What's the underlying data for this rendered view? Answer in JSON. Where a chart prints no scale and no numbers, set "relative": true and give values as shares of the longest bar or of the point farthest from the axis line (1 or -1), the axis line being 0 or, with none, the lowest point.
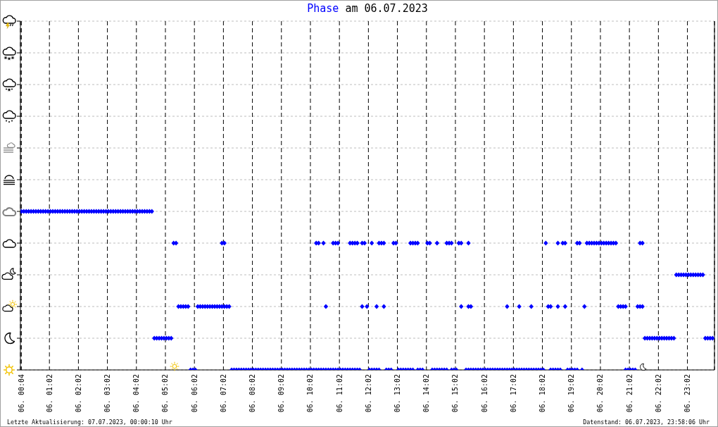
{
  "chart_data": {
    "type": "scatter",
    "title": "am 06.07.2023",
    "legend": "top",
    "marker": "diamond",
    "grid": true,
    "relative": true,
    "annotations": [
      "Letzte Aktualisierung: 07.07.2023, 00:00:10 Uhr",
      "Datenstand: 06.07.2023, 23:58:06 Uhr"
    ],
    "xlim": [
      "2023-07-06T00:02",
      "2023-07-06T23:58"
    ],
    "xticks": [
      {
        "value": "2023-07-06T00:04",
        "label": "06. 00:04"
      },
      {
        "value": "2023-07-06T01:02",
        "label": "06. 01:02"
      },
      {
        "value": "2023-07-06T02:02",
        "label": "06. 02:02"
      },
      {
        "value": "2023-07-06T03:02",
        "label": "06. 03:02"
      },
      {
        "value": "2023-07-06T04:02",
        "label": "06. 04:02"
      },
      {
        "value": "2023-07-06T05:02",
        "label": "06. 05:02"
      },
      {
        "value": "2023-07-06T06:02",
        "label": "06. 06:02"
      },
      {
        "value": "2023-07-06T07:02",
        "label": "06. 07:02"
      },
      {
        "value": "2023-07-06T08:02",
        "label": "06. 08:02"
      },
      {
        "value": "2023-07-06T09:02",
        "label": "06. 09:02"
      },
      {
        "value": "2023-07-06T10:02",
        "label": "06. 10:02"
      },
      {
        "value": "2023-07-06T11:02",
        "label": "06. 11:02"
      },
      {
        "value": "2023-07-06T12:02",
        "label": "06. 12:02"
      },
      {
        "value": "2023-07-06T13:02",
        "label": "06. 13:02"
      },
      {
        "value": "2023-07-06T14:02",
        "label": "06. 14:02"
      },
      {
        "value": "2023-07-06T15:02",
        "label": "06. 15:02"
      },
      {
        "value": "2023-07-06T16:02",
        "label": "06. 16:02"
      },
      {
        "value": "2023-07-06T17:02",
        "label": "06. 17:02"
      },
      {
        "value": "2023-07-06T18:02",
        "label": "06. 18:02"
      },
      {
        "value": "2023-07-06T19:02",
        "label": "06. 19:02"
      },
      {
        "value": "2023-07-06T20:02",
        "label": "06. 20:02"
      },
      {
        "value": "2023-07-06T21:02",
        "label": "06. 21:02"
      },
      {
        "value": "2023-07-06T22:02",
        "label": "06. 22:02"
      },
      {
        "value": "2023-07-06T23:02",
        "label": "06. 23:02"
      }
    ],
    "x": [
      "2023-07-06T00:04",
      "2023-07-06T00:09",
      "2023-07-06T00:14",
      "2023-07-06T00:19",
      "2023-07-06T00:24",
      "2023-07-06T00:29",
      "2023-07-06T00:34",
      "2023-07-06T00:39",
      "2023-07-06T00:44",
      "2023-07-06T00:49",
      "2023-07-06T00:54",
      "2023-07-06T00:59",
      "2023-07-06T01:04",
      "2023-07-06T01:09",
      "2023-07-06T01:14",
      "2023-07-06T01:19",
      "2023-07-06T01:24",
      "2023-07-06T01:29",
      "2023-07-06T01:34",
      "2023-07-06T01:39",
      "2023-07-06T01:44",
      "2023-07-06T01:49",
      "2023-07-06T01:54",
      "2023-07-06T01:59",
      "2023-07-06T02:04",
      "2023-07-06T02:09",
      "2023-07-06T02:14",
      "2023-07-06T02:19",
      "2023-07-06T02:24",
      "2023-07-06T02:29",
      "2023-07-06T02:34",
      "2023-07-06T02:39",
      "2023-07-06T02:44",
      "2023-07-06T02:49",
      "2023-07-06T02:54",
      "2023-07-06T02:59",
      "2023-07-06T03:04",
      "2023-07-06T03:09",
      "2023-07-06T03:14",
      "2023-07-06T03:19",
      "2023-07-06T03:24",
      "2023-07-06T03:29",
      "2023-07-06T03:34",
      "2023-07-06T03:39",
      "2023-07-06T03:44",
      "2023-07-06T03:49",
      "2023-07-06T03:54",
      "2023-07-06T03:59",
      "2023-07-06T04:04",
      "2023-07-06T04:09",
      "2023-07-06T04:14",
      "2023-07-06T04:19",
      "2023-07-06T04:24",
      "2023-07-06T04:29",
      "2023-07-06T04:34",
      "2023-07-06T04:39",
      "2023-07-06T04:44",
      "2023-07-06T04:49",
      "2023-07-06T04:54",
      "2023-07-06T04:59",
      "2023-07-06T05:04",
      "2023-07-06T05:09",
      "2023-07-06T05:14",
      "2023-07-06T05:19",
      "2023-07-06T05:24",
      "2023-07-06T05:29",
      "2023-07-06T05:34",
      "2023-07-06T05:39",
      "2023-07-06T05:44",
      "2023-07-06T05:49",
      "2023-07-06T05:54",
      "2023-07-06T05:59",
      "2023-07-06T06:04",
      "2023-07-06T06:09",
      "2023-07-06T06:14",
      "2023-07-06T06:19",
      "2023-07-06T06:24",
      "2023-07-06T06:29",
      "2023-07-06T06:34",
      "2023-07-06T06:39",
      "2023-07-06T06:44",
      "2023-07-06T06:49",
      "2023-07-06T06:54",
      "2023-07-06T06:59",
      "2023-07-06T06:59",
      "2023-07-06T07:04",
      "2023-07-06T07:04",
      "2023-07-06T07:09",
      "2023-07-06T07:14",
      "2023-07-06T07:19",
      "2023-07-06T07:24",
      "2023-07-06T07:29",
      "2023-07-06T07:34",
      "2023-07-06T07:39",
      "2023-07-06T07:44",
      "2023-07-06T07:49",
      "2023-07-06T07:54",
      "2023-07-06T07:59",
      "2023-07-06T08:04",
      "2023-07-06T08:09",
      "2023-07-06T08:14",
      "2023-07-06T08:19",
      "2023-07-06T08:24",
      "2023-07-06T08:29",
      "2023-07-06T08:34",
      "2023-07-06T08:39",
      "2023-07-06T08:44",
      "2023-07-06T08:49",
      "2023-07-06T08:54",
      "2023-07-06T08:59",
      "2023-07-06T09:04",
      "2023-07-06T09:09",
      "2023-07-06T09:14",
      "2023-07-06T09:19",
      "2023-07-06T09:24",
      "2023-07-06T09:29",
      "2023-07-06T09:34",
      "2023-07-06T09:39",
      "2023-07-06T09:44",
      "2023-07-06T09:49",
      "2023-07-06T09:54",
      "2023-07-06T09:59",
      "2023-07-06T10:04",
      "2023-07-06T10:09",
      "2023-07-06T10:14",
      "2023-07-06T10:14",
      "2023-07-06T10:19",
      "2023-07-06T10:19",
      "2023-07-06T10:24",
      "2023-07-06T10:29",
      "2023-07-06T10:29",
      "2023-07-06T10:34",
      "2023-07-06T10:34",
      "2023-07-06T10:39",
      "2023-07-06T10:44",
      "2023-07-06T10:49",
      "2023-07-06T10:49",
      "2023-07-06T10:54",
      "2023-07-06T10:54",
      "2023-07-06T10:59",
      "2023-07-06T10:59",
      "2023-07-06T11:04",
      "2023-07-06T11:09",
      "2023-07-06T11:14",
      "2023-07-06T11:19",
      "2023-07-06T11:24",
      "2023-07-06T11:24",
      "2023-07-06T11:29",
      "2023-07-06T11:29",
      "2023-07-06T11:34",
      "2023-07-06T11:34",
      "2023-07-06T11:39",
      "2023-07-06T11:39",
      "2023-07-06T11:44",
      "2023-07-06T11:49",
      "2023-07-06T11:49",
      "2023-07-06T11:54",
      "2023-07-06T11:59",
      "2023-07-06T12:04",
      "2023-07-06T12:09",
      "2023-07-06T12:09",
      "2023-07-06T12:14",
      "2023-07-06T12:19",
      "2023-07-06T12:19",
      "2023-07-06T12:24",
      "2023-07-06T12:24",
      "2023-07-06T12:29",
      "2023-07-06T12:34",
      "2023-07-06T12:34",
      "2023-07-06T12:39",
      "2023-07-06T12:44",
      "2023-07-06T12:49",
      "2023-07-06T12:54",
      "2023-07-06T12:59",
      "2023-07-06T13:04",
      "2023-07-06T13:09",
      "2023-07-06T13:14",
      "2023-07-06T13:19",
      "2023-07-06T13:24",
      "2023-07-06T13:29",
      "2023-07-06T13:29",
      "2023-07-06T13:34",
      "2023-07-06T13:34",
      "2023-07-06T13:39",
      "2023-07-06T13:44",
      "2023-07-06T13:44",
      "2023-07-06T13:49",
      "2023-07-06T13:54",
      "2023-07-06T14:04",
      "2023-07-06T14:09",
      "2023-07-06T14:14",
      "2023-07-06T14:19",
      "2023-07-06T14:24",
      "2023-07-06T14:24",
      "2023-07-06T14:29",
      "2023-07-06T14:34",
      "2023-07-06T14:39",
      "2023-07-06T14:44",
      "2023-07-06T14:44",
      "2023-07-06T14:49",
      "2023-07-06T14:54",
      "2023-07-06T14:54",
      "2023-07-06T14:59",
      "2023-07-06T15:04",
      "2023-07-06T15:09",
      "2023-07-06T15:14",
      "2023-07-06T15:14",
      "2023-07-06T15:24",
      "2023-07-06T15:29",
      "2023-07-06T15:29",
      "2023-07-06T15:29",
      "2023-07-06T15:34",
      "2023-07-06T15:34",
      "2023-07-06T15:39",
      "2023-07-06T15:44",
      "2023-07-06T15:49",
      "2023-07-06T15:54",
      "2023-07-06T15:59",
      "2023-07-06T16:04",
      "2023-07-06T16:09",
      "2023-07-06T16:14",
      "2023-07-06T16:19",
      "2023-07-06T16:24",
      "2023-07-06T16:29",
      "2023-07-06T16:34",
      "2023-07-06T16:39",
      "2023-07-06T16:44",
      "2023-07-06T16:49",
      "2023-07-06T16:49",
      "2023-07-06T16:54",
      "2023-07-06T16:59",
      "2023-07-06T17:04",
      "2023-07-06T17:09",
      "2023-07-06T17:14",
      "2023-07-06T17:14",
      "2023-07-06T17:19",
      "2023-07-06T17:24",
      "2023-07-06T17:29",
      "2023-07-06T17:34",
      "2023-07-06T17:39",
      "2023-07-06T17:39",
      "2023-07-06T17:44",
      "2023-07-06T17:49",
      "2023-07-06T17:54",
      "2023-07-06T17:59",
      "2023-07-06T18:04",
      "2023-07-06T18:09",
      "2023-07-06T18:14",
      "2023-07-06T18:19",
      "2023-07-06T18:19",
      "2023-07-06T18:24",
      "2023-07-06T18:29",
      "2023-07-06T18:34",
      "2023-07-06T18:34",
      "2023-07-06T18:34",
      "2023-07-06T18:39",
      "2023-07-06T18:44",
      "2023-07-06T18:49",
      "2023-07-06T18:49",
      "2023-07-06T18:54",
      "2023-07-06T18:59",
      "2023-07-06T19:04",
      "2023-07-06T19:09",
      "2023-07-06T19:14",
      "2023-07-06T19:14",
      "2023-07-06T19:19",
      "2023-07-06T19:24",
      "2023-07-06T19:29",
      "2023-07-06T19:34",
      "2023-07-06T19:39",
      "2023-07-06T19:44",
      "2023-07-06T19:49",
      "2023-07-06T19:54",
      "2023-07-06T19:59",
      "2023-07-06T20:04",
      "2023-07-06T20:09",
      "2023-07-06T20:14",
      "2023-07-06T20:19",
      "2023-07-06T20:24",
      "2023-07-06T20:29",
      "2023-07-06T20:34",
      "2023-07-06T20:39",
      "2023-07-06T20:44",
      "2023-07-06T20:49",
      "2023-07-06T20:54",
      "2023-07-06T20:54",
      "2023-07-06T20:59",
      "2023-07-06T21:04",
      "2023-07-06T21:09",
      "2023-07-06T21:14",
      "2023-07-06T21:19",
      "2023-07-06T21:24",
      "2023-07-06T21:24",
      "2023-07-06T21:29",
      "2023-07-06T21:29",
      "2023-07-06T21:34",
      "2023-07-06T21:39",
      "2023-07-06T21:44",
      "2023-07-06T21:49",
      "2023-07-06T21:54",
      "2023-07-06T21:59",
      "2023-07-06T22:04",
      "2023-07-06T22:09",
      "2023-07-06T22:14",
      "2023-07-06T22:19",
      "2023-07-06T22:24",
      "2023-07-06T22:29",
      "2023-07-06T22:34",
      "2023-07-06T22:39",
      "2023-07-06T22:44",
      "2023-07-06T22:49",
      "2023-07-06T22:54",
      "2023-07-06T22:59",
      "2023-07-06T23:04",
      "2023-07-06T23:09",
      "2023-07-06T23:14",
      "2023-07-06T23:19",
      "2023-07-06T23:24",
      "2023-07-06T23:29",
      "2023-07-06T23:34",
      "2023-07-06T23:39",
      "2023-07-06T23:44",
      "2023-07-06T23:49",
      "2023-07-06T23:54"
    ],
    "series": [
      {
        "name": "Phase",
        "color": "#0000ff",
        "values": [
          1,
          1,
          1,
          1,
          1,
          1,
          1,
          1,
          1,
          1,
          1,
          1,
          1,
          1,
          1,
          1,
          1,
          1,
          1,
          1,
          1,
          1,
          1,
          1,
          1,
          1,
          1,
          1,
          1,
          1,
          1,
          1,
          1,
          1,
          1,
          1,
          1,
          1,
          1,
          1,
          1,
          1,
          1,
          1,
          1,
          1,
          1,
          1,
          1,
          1,
          1,
          1,
          1,
          1,
          1,
          0.2,
          0.2,
          0.2,
          0.2,
          0.2,
          0.2,
          0.2,
          0.2,
          0.8,
          0.8,
          0.4,
          0.4,
          0.4,
          0.4,
          0.4,
          0,
          0,
          0,
          0.4,
          0.4,
          0.4,
          0.4,
          0.4,
          0.4,
          0.4,
          0.4,
          0.4,
          0.4,
          0.4,
          0.8,
          0.4,
          0.8,
          0.4,
          0.4,
          0,
          0,
          0,
          0,
          0,
          0,
          0,
          0,
          0,
          0,
          0,
          0,
          0,
          0,
          0,
          0,
          0,
          0,
          0,
          0,
          0,
          0,
          0,
          0,
          0,
          0,
          0,
          0,
          0,
          0,
          0,
          0,
          0,
          0,
          0,
          0,
          0.8,
          0,
          0.8,
          0,
          0,
          0.8,
          0,
          0.4,
          0,
          0,
          0,
          0.8,
          0,
          0.8,
          0,
          0.8,
          0,
          0,
          0,
          0,
          0,
          0.8,
          0,
          0.8,
          0,
          0.8,
          0,
          0.8,
          0,
          0.4,
          0.8,
          0.8,
          0.4,
          0,
          0,
          0.8,
          0,
          0,
          0.4,
          0,
          0.8,
          0.8,
          0.4,
          0.8,
          0,
          0,
          0,
          0.8,
          0.8,
          0,
          0,
          0,
          0,
          0,
          0,
          0.8,
          0,
          0.8,
          0.8,
          0,
          0.8,
          0,
          0,
          0.8,
          0.8,
          0,
          0,
          0,
          0.8,
          0,
          0,
          0,
          0,
          0.8,
          0.8,
          0,
          0.8,
          0,
          0,
          0.8,
          0.4,
          0.8,
          0,
          0,
          0.4,
          0.8,
          0,
          0.4,
          0,
          0,
          0,
          0,
          0,
          0,
          0,
          0,
          0,
          0,
          0,
          0,
          0,
          0,
          0,
          0.4,
          0,
          0,
          0,
          0,
          0,
          0.4,
          0,
          0,
          0,
          0,
          0,
          0.4,
          0,
          0,
          0,
          0,
          0,
          0.8,
          0.4,
          0,
          0.4,
          0,
          0,
          0,
          0.4,
          0.8,
          0,
          0.8,
          0.4,
          0.8,
          0,
          0,
          0,
          0,
          0,
          0.8,
          0.8,
          0,
          0.4,
          0.8,
          0.8,
          0.8,
          0.8,
          0.8,
          0.8,
          0.8,
          0.8,
          0.8,
          0.8,
          0.8,
          0.8,
          0.8,
          0.4,
          0.4,
          0.4,
          0,
          0.4,
          0,
          0,
          0,
          0,
          0.4,
          0.4,
          0.8,
          0.4,
          0.8,
          0.2,
          0.2,
          0.2,
          0.2,
          0.2,
          0.2,
          0.2,
          0.2,
          0.2,
          0.2,
          0.2,
          0.2,
          0.2,
          0.6,
          0.6,
          0.6,
          0.6,
          0.6,
          0.6,
          0.6,
          0.6,
          0.6,
          0.6,
          0.6,
          0.6,
          0.2,
          0.2,
          0.2,
          0.2
        ]
      }
    ]
  }
}
